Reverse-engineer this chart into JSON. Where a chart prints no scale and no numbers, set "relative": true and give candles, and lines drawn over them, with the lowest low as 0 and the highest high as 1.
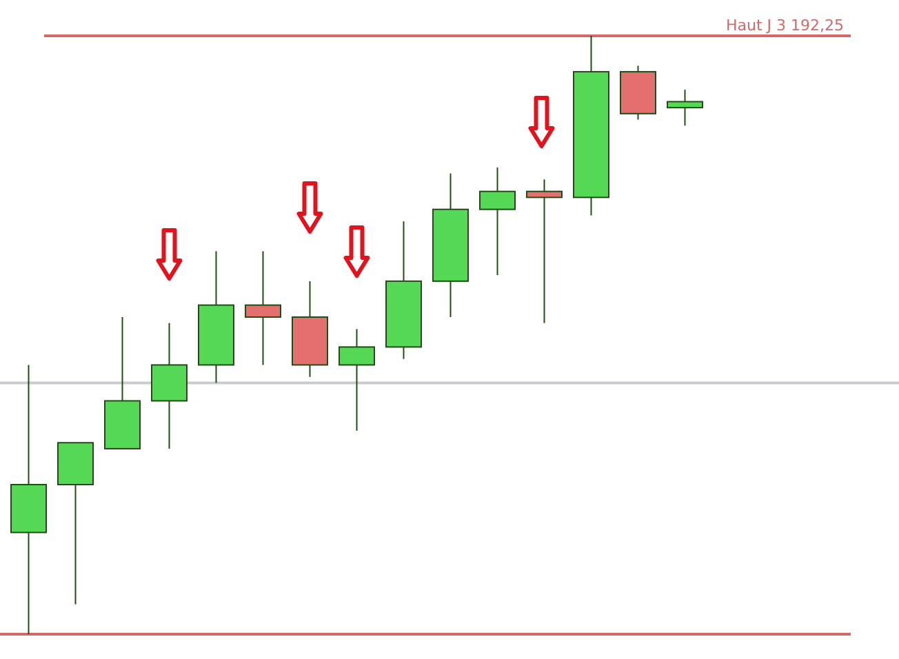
{
  "chart_data": {
    "type": "candlestick",
    "relative": true,
    "categories": [
      null,
      null,
      null,
      null,
      null,
      null,
      null,
      null,
      null,
      null,
      null,
      null,
      null,
      null,
      null
    ],
    "ohlc": [
      [
        0.17,
        0.45,
        0,
        0.25
      ],
      [
        0.25,
        0.32,
        0.05,
        0.32
      ],
      [
        0.31,
        0.53,
        0.31,
        0.39
      ],
      [
        0.39,
        0.52,
        0.31,
        0.45
      ],
      [
        0.45,
        0.64,
        0.42,
        0.55
      ],
      [
        0.55,
        0.64,
        0.45,
        0.53
      ],
      [
        0.53,
        0.59,
        0.43,
        0.45
      ],
      [
        0.45,
        0.51,
        0.34,
        0.48
      ],
      [
        0.48,
        0.69,
        0.46,
        0.59
      ],
      [
        0.59,
        0.77,
        0.53,
        0.71
      ],
      [
        0.71,
        0.78,
        0.6,
        0.74
      ],
      [
        0.74,
        0.76,
        0.52,
        0.73
      ],
      [
        0.73,
        1,
        0.7,
        0.94
      ],
      [
        0.94,
        0.95,
        0.86,
        0.87
      ],
      [
        0.88,
        0.91,
        0.85,
        0.89
      ]
    ],
    "colors": [
      "#55d855",
      "#55d855",
      "#55d855",
      "#55d855",
      "#55d855",
      "#e36f6f",
      "#e36f6f",
      "#55d855",
      "#55d855",
      "#55d855",
      "#55d855",
      "#e36f6f",
      "#55d855",
      "#e36f6f",
      "#55d855"
    ],
    "ref_lines": [
      {
        "axis": "y",
        "value": 1,
        "label": "Haut J 3 192,25",
        "color": "#d26a6a"
      },
      {
        "axis": "y",
        "value": 0,
        "label": null,
        "color": "#d26a6a"
      },
      {
        "axis": "y",
        "value": 0.42,
        "label": null,
        "color": "#c8cbd2"
      }
    ]
  }
}
